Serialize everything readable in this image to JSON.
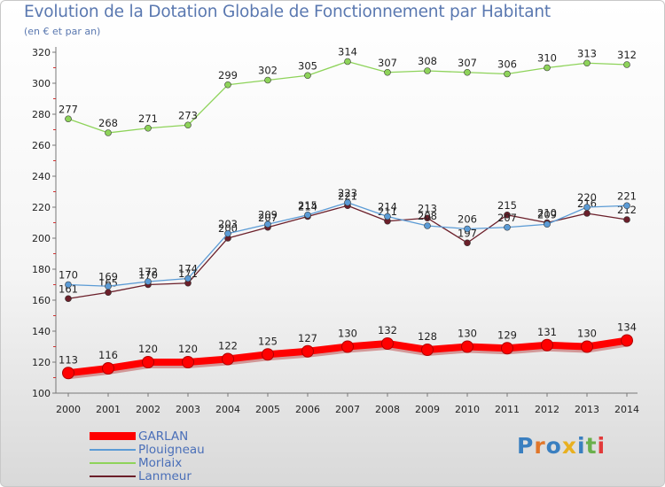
{
  "title": "Evolution de la Dotation Globale de Fonctionnement par Habitant",
  "subtitle": "(en € et par an)",
  "logo": {
    "text": "Proxiti",
    "colors": [
      "#3a7fc0",
      "#e0762a",
      "#3a7fc0",
      "#e8b020",
      "#3a7fc0",
      "#6ab04c",
      "#e23a3a"
    ]
  },
  "chart_data": {
    "type": "line",
    "title": "Evolution de la Dotation Globale de Fonctionnement par Habitant",
    "subtitle": "(en € et par an)",
    "x": [
      "2000",
      "2001",
      "2002",
      "2003",
      "2004",
      "2005",
      "2006",
      "2007",
      "2008",
      "2009",
      "2010",
      "2011",
      "2012",
      "2013",
      "2014"
    ],
    "ylim": [
      100,
      320
    ],
    "yticks": [
      100,
      120,
      140,
      160,
      180,
      200,
      220,
      240,
      260,
      280,
      300,
      320
    ],
    "grid": false,
    "legend_position": "bottom-left",
    "series": [
      {
        "name": "GARLAN",
        "color": "#ff0000",
        "values": [
          113,
          116,
          120,
          120,
          122,
          125,
          127,
          130,
          132,
          128,
          130,
          129,
          131,
          130,
          134
        ]
      },
      {
        "name": "Plouigneau",
        "color": "#5b9bd5",
        "values": [
          170,
          169,
          172,
          174,
          203,
          209,
          215,
          223,
          214,
          208,
          206,
          207,
          209,
          220,
          221
        ]
      },
      {
        "name": "Morlaix",
        "color": "#8ed35a",
        "values": [
          277,
          268,
          271,
          273,
          299,
          302,
          305,
          314,
          307,
          308,
          307,
          306,
          310,
          313,
          312
        ]
      },
      {
        "name": "Lanmeur",
        "color": "#6b1f2a",
        "values": [
          161,
          165,
          170,
          171,
          200,
          207,
          214,
          221,
          211,
          213,
          197,
          215,
          210,
          216,
          212
        ]
      }
    ]
  }
}
